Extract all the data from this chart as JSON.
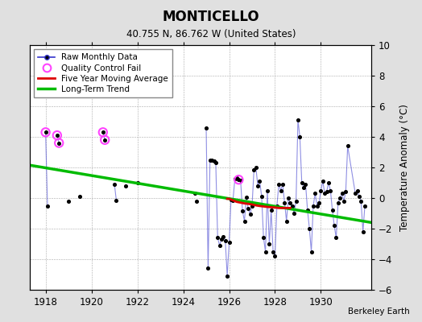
{
  "title": "MONTICELLO",
  "subtitle": "40.755 N, 86.762 W (United States)",
  "ylabel": "Temperature Anomaly (°C)",
  "attribution": "Berkeley Earth",
  "xlim": [
    1917.3,
    1932.2
  ],
  "ylim": [
    -6,
    10
  ],
  "yticks": [
    -6,
    -4,
    -2,
    0,
    2,
    4,
    6,
    8,
    10
  ],
  "xticks": [
    1918,
    1920,
    1922,
    1924,
    1926,
    1928,
    1930
  ],
  "bg_color": "#e0e0e0",
  "plot_bg_color": "#ffffff",
  "raw_segments": [
    [
      [
        1918.0,
        4.3
      ],
      [
        1918.083,
        -0.5
      ]
    ],
    [
      [
        1918.5,
        4.1
      ],
      [
        1918.583,
        3.6
      ]
    ],
    [
      [
        1919.0,
        -0.2
      ]
    ],
    [
      [
        1919.5,
        0.1
      ]
    ],
    [
      [
        1920.5,
        4.3
      ],
      [
        1920.583,
        3.8
      ]
    ],
    [
      [
        1921.0,
        0.9
      ],
      [
        1921.083,
        -0.15
      ]
    ],
    [
      [
        1921.5,
        0.8
      ]
    ],
    [
      [
        1922.0,
        1.0
      ]
    ],
    [
      [
        1924.5,
        0.3
      ]
    ],
    [
      [
        1924.583,
        -0.2
      ]
    ],
    [
      [
        1925.0,
        4.6
      ],
      [
        1925.083,
        -4.6
      ],
      [
        1925.167,
        2.5
      ],
      [
        1925.25,
        2.5
      ],
      [
        1925.333,
        2.4
      ],
      [
        1925.417,
        2.3
      ],
      [
        1925.5,
        -2.6
      ],
      [
        1925.583,
        -3.1
      ],
      [
        1925.667,
        -2.7
      ],
      [
        1925.75,
        -2.5
      ],
      [
        1925.833,
        -2.8
      ],
      [
        1925.917,
        -5.1
      ],
      [
        1926.0,
        -2.9
      ],
      [
        1926.083,
        -0.1
      ],
      [
        1926.167,
        -0.15
      ],
      [
        1926.25,
        1.25
      ],
      [
        1926.333,
        1.3
      ],
      [
        1926.417,
        1.2
      ],
      [
        1926.5,
        1.15
      ],
      [
        1926.583,
        -0.85
      ],
      [
        1926.667,
        -1.5
      ],
      [
        1926.75,
        0.05
      ],
      [
        1926.833,
        -0.7
      ],
      [
        1926.917,
        -1.05
      ],
      [
        1927.0,
        -0.5
      ],
      [
        1927.083,
        1.85
      ],
      [
        1927.167,
        2.0
      ],
      [
        1927.25,
        0.8
      ],
      [
        1927.333,
        1.1
      ],
      [
        1927.417,
        0.1
      ],
      [
        1927.5,
        -2.6
      ],
      [
        1927.583,
        -3.5
      ],
      [
        1927.667,
        0.5
      ],
      [
        1927.75,
        -3.0
      ],
      [
        1927.833,
        -0.8
      ],
      [
        1927.917,
        -3.5
      ],
      [
        1928.0,
        -3.8
      ],
      [
        1928.083,
        -0.5
      ],
      [
        1928.167,
        0.9
      ],
      [
        1928.25,
        0.5
      ],
      [
        1928.333,
        0.9
      ],
      [
        1928.417,
        -0.3
      ],
      [
        1928.5,
        -1.5
      ],
      [
        1928.583,
        0.0
      ],
      [
        1928.667,
        -0.3
      ],
      [
        1928.75,
        -0.5
      ],
      [
        1928.833,
        -1.0
      ],
      [
        1928.917,
        -0.2
      ],
      [
        1929.0,
        5.1
      ],
      [
        1929.083,
        4.0
      ],
      [
        1929.167,
        1.0
      ],
      [
        1929.25,
        0.7
      ],
      [
        1929.333,
        0.9
      ],
      [
        1929.417,
        -0.8
      ],
      [
        1929.5,
        -2.0
      ],
      [
        1929.583,
        -3.5
      ],
      [
        1929.667,
        -0.5
      ],
      [
        1929.75,
        0.3
      ],
      [
        1929.833,
        -0.5
      ],
      [
        1929.917,
        -0.3
      ],
      [
        1930.0,
        0.5
      ],
      [
        1930.083,
        1.1
      ],
      [
        1930.167,
        0.3
      ],
      [
        1930.25,
        0.4
      ],
      [
        1930.333,
        1.0
      ],
      [
        1930.417,
        0.5
      ],
      [
        1930.5,
        -0.8
      ],
      [
        1930.583,
        -1.8
      ],
      [
        1930.667,
        -2.6
      ],
      [
        1930.75,
        -0.3
      ],
      [
        1930.833,
        0.0
      ],
      [
        1930.917,
        0.3
      ],
      [
        1931.0,
        -0.2
      ],
      [
        1931.083,
        0.4
      ],
      [
        1931.167,
        3.4
      ],
      [
        1931.5,
        0.3
      ],
      [
        1931.583,
        0.5
      ],
      [
        1931.667,
        0.1
      ],
      [
        1931.75,
        -0.2
      ],
      [
        1931.833,
        -2.2
      ],
      [
        1931.917,
        -0.5
      ]
    ]
  ],
  "qc_fail": [
    [
      1918.0,
      4.3
    ],
    [
      1918.5,
      4.1
    ],
    [
      1918.583,
      3.6
    ],
    [
      1920.5,
      4.3
    ],
    [
      1920.583,
      3.8
    ],
    [
      1926.417,
      1.2
    ]
  ],
  "five_year_ma": [
    [
      1925.917,
      -0.05
    ],
    [
      1926.0,
      -0.05
    ],
    [
      1926.083,
      -0.1
    ],
    [
      1926.167,
      -0.15
    ],
    [
      1926.25,
      -0.2
    ],
    [
      1926.333,
      -0.25
    ],
    [
      1926.5,
      -0.3
    ],
    [
      1926.667,
      -0.35
    ],
    [
      1926.833,
      -0.38
    ],
    [
      1927.0,
      -0.42
    ],
    [
      1927.167,
      -0.48
    ],
    [
      1927.333,
      -0.52
    ],
    [
      1927.5,
      -0.55
    ],
    [
      1927.667,
      -0.58
    ],
    [
      1927.833,
      -0.6
    ],
    [
      1928.0,
      -0.62
    ],
    [
      1928.167,
      -0.65
    ],
    [
      1928.333,
      -0.65
    ],
    [
      1928.5,
      -0.65
    ],
    [
      1928.667,
      -0.65
    ]
  ],
  "trend_x": [
    1917.3,
    1932.2
  ],
  "trend_y": [
    2.15,
    -1.6
  ],
  "raw_color": "#3333cc",
  "raw_line_alpha": 0.55,
  "ma_color": "#dd0000",
  "trend_color": "#00bb00",
  "qc_color": "#ff44ff"
}
